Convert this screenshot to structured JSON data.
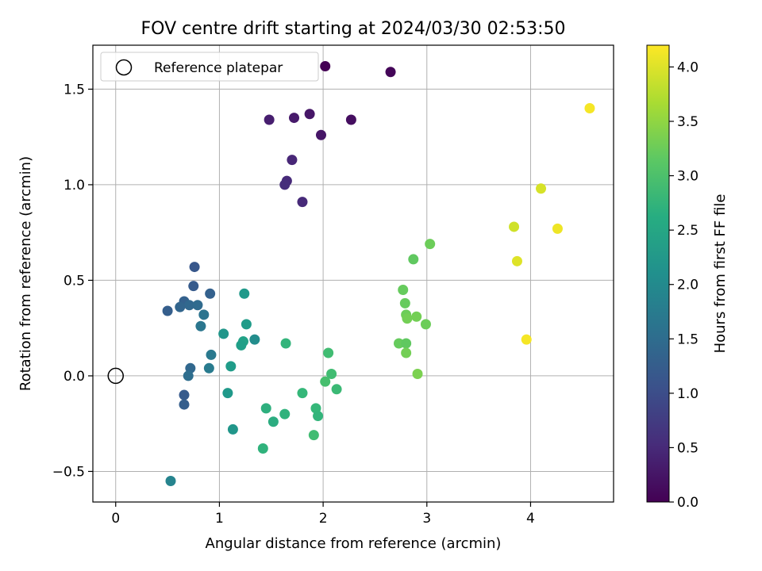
{
  "chart_data": {
    "type": "scatter",
    "title": "FOV centre drift starting at 2024/03/30 02:53:50",
    "xlabel": "Angular distance from reference (arcmin)",
    "ylabel": "Rotation from reference (arcmin)",
    "xlim": [
      -0.22,
      4.8
    ],
    "ylim": [
      -0.66,
      1.73
    ],
    "x_ticks": [
      0,
      1,
      2,
      3,
      4
    ],
    "x_tick_labels": [
      "0",
      "1",
      "2",
      "3",
      "4"
    ],
    "y_ticks": [
      -0.5,
      0.0,
      0.5,
      1.0,
      1.5
    ],
    "y_tick_labels": [
      "−0.5",
      "0.0",
      "0.5",
      "1.0",
      "1.5"
    ],
    "grid": true,
    "legend": {
      "position": "top-left",
      "entries": [
        "Reference platepar"
      ]
    },
    "reference_point": {
      "x": 0.0,
      "y": 0.0
    },
    "colorbar": {
      "label": "Hours from first FF file",
      "colormap": "viridis",
      "range": [
        0.0,
        4.2
      ],
      "ticks": [
        0.0,
        0.5,
        1.0,
        1.5,
        2.0,
        2.5,
        3.0,
        3.5,
        4.0
      ],
      "tick_labels": [
        "0.0",
        "0.5",
        "1.0",
        "1.5",
        "2.0",
        "2.5",
        "3.0",
        "3.5",
        "4.0"
      ]
    },
    "points": [
      {
        "x": 2.02,
        "y": 1.62,
        "c": 0.0
      },
      {
        "x": 2.65,
        "y": 1.59,
        "c": 0.05
      },
      {
        "x": 2.27,
        "y": 1.34,
        "c": 0.15
      },
      {
        "x": 1.87,
        "y": 1.37,
        "c": 0.25
      },
      {
        "x": 1.72,
        "y": 1.35,
        "c": 0.3
      },
      {
        "x": 1.48,
        "y": 1.34,
        "c": 0.35
      },
      {
        "x": 1.98,
        "y": 1.26,
        "c": 0.25
      },
      {
        "x": 1.7,
        "y": 1.13,
        "c": 0.45
      },
      {
        "x": 1.65,
        "y": 1.02,
        "c": 0.5
      },
      {
        "x": 1.63,
        "y": 1.0,
        "c": 0.55
      },
      {
        "x": 1.8,
        "y": 0.91,
        "c": 0.5
      },
      {
        "x": 0.76,
        "y": 0.57,
        "c": 1.15
      },
      {
        "x": 0.75,
        "y": 0.47,
        "c": 1.2
      },
      {
        "x": 0.91,
        "y": 0.43,
        "c": 1.3
      },
      {
        "x": 0.66,
        "y": 0.39,
        "c": 1.3
      },
      {
        "x": 0.71,
        "y": 0.37,
        "c": 1.4
      },
      {
        "x": 0.79,
        "y": 0.37,
        "c": 1.45
      },
      {
        "x": 0.62,
        "y": 0.36,
        "c": 1.35
      },
      {
        "x": 0.5,
        "y": 0.34,
        "c": 1.25
      },
      {
        "x": 0.85,
        "y": 0.32,
        "c": 1.6
      },
      {
        "x": 0.82,
        "y": 0.26,
        "c": 1.65
      },
      {
        "x": 0.92,
        "y": 0.11,
        "c": 1.7
      },
      {
        "x": 0.9,
        "y": 0.04,
        "c": 1.75
      },
      {
        "x": 0.72,
        "y": 0.04,
        "c": 1.4
      },
      {
        "x": 0.7,
        "y": 0.0,
        "c": 1.5
      },
      {
        "x": 0.66,
        "y": -0.1,
        "c": 1.2
      },
      {
        "x": 0.66,
        "y": -0.15,
        "c": 1.25
      },
      {
        "x": 0.53,
        "y": -0.55,
        "c": 1.9
      },
      {
        "x": 1.24,
        "y": 0.43,
        "c": 2.25
      },
      {
        "x": 1.26,
        "y": 0.27,
        "c": 2.3
      },
      {
        "x": 1.04,
        "y": 0.22,
        "c": 2.2
      },
      {
        "x": 1.34,
        "y": 0.19,
        "c": 2.05
      },
      {
        "x": 1.23,
        "y": 0.18,
        "c": 2.4
      },
      {
        "x": 1.21,
        "y": 0.16,
        "c": 2.35
      },
      {
        "x": 1.11,
        "y": 0.05,
        "c": 2.3
      },
      {
        "x": 1.08,
        "y": -0.09,
        "c": 2.25
      },
      {
        "x": 1.13,
        "y": -0.28,
        "c": 2.2
      },
      {
        "x": 1.64,
        "y": 0.17,
        "c": 2.75
      },
      {
        "x": 2.05,
        "y": 0.12,
        "c": 2.9
      },
      {
        "x": 2.08,
        "y": 0.01,
        "c": 2.9
      },
      {
        "x": 2.02,
        "y": -0.03,
        "c": 2.95
      },
      {
        "x": 2.13,
        "y": -0.07,
        "c": 2.85
      },
      {
        "x": 1.8,
        "y": -0.09,
        "c": 2.8
      },
      {
        "x": 1.45,
        "y": -0.17,
        "c": 2.65
      },
      {
        "x": 1.63,
        "y": -0.2,
        "c": 2.7
      },
      {
        "x": 1.52,
        "y": -0.24,
        "c": 2.6
      },
      {
        "x": 1.93,
        "y": -0.17,
        "c": 2.8
      },
      {
        "x": 1.95,
        "y": -0.21,
        "c": 2.75
      },
      {
        "x": 1.91,
        "y": -0.31,
        "c": 2.9
      },
      {
        "x": 1.42,
        "y": -0.38,
        "c": 2.7
      },
      {
        "x": 2.87,
        "y": 0.61,
        "c": 3.15
      },
      {
        "x": 3.03,
        "y": 0.69,
        "c": 3.25
      },
      {
        "x": 2.77,
        "y": 0.45,
        "c": 3.2
      },
      {
        "x": 2.79,
        "y": 0.38,
        "c": 3.2
      },
      {
        "x": 2.8,
        "y": 0.32,
        "c": 3.25
      },
      {
        "x": 2.81,
        "y": 0.3,
        "c": 3.3
      },
      {
        "x": 2.9,
        "y": 0.31,
        "c": 3.3
      },
      {
        "x": 2.99,
        "y": 0.27,
        "c": 3.25
      },
      {
        "x": 2.73,
        "y": 0.17,
        "c": 3.2
      },
      {
        "x": 2.8,
        "y": 0.17,
        "c": 3.15
      },
      {
        "x": 2.8,
        "y": 0.12,
        "c": 3.3
      },
      {
        "x": 2.91,
        "y": 0.01,
        "c": 3.35
      },
      {
        "x": 4.57,
        "y": 1.4,
        "c": 4.15
      },
      {
        "x": 4.1,
        "y": 0.98,
        "c": 3.95
      },
      {
        "x": 3.84,
        "y": 0.78,
        "c": 3.9
      },
      {
        "x": 4.26,
        "y": 0.77,
        "c": 4.1
      },
      {
        "x": 3.87,
        "y": 0.6,
        "c": 4.0
      },
      {
        "x": 3.96,
        "y": 0.19,
        "c": 4.15
      }
    ]
  }
}
